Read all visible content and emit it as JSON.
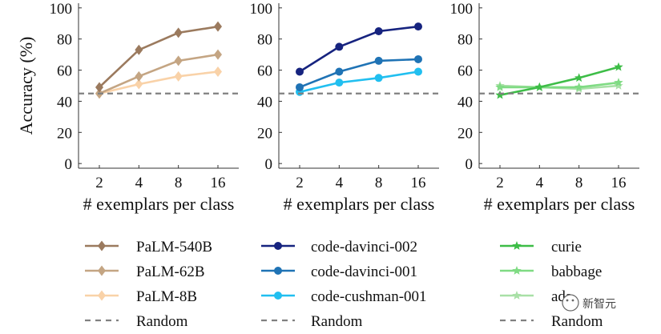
{
  "chart_data": [
    {
      "type": "line",
      "ylabel": "Accuracy (%)",
      "xlabel": "# exemplars per class",
      "x": [
        2,
        4,
        8,
        16
      ],
      "xticks": [
        "2",
        "4",
        "8",
        "16"
      ],
      "yticks": [
        "0",
        "20",
        "40",
        "60",
        "80",
        "100"
      ],
      "ylim": [
        -3,
        103
      ],
      "random_baseline": 45,
      "series": [
        {
          "name": "PaLM-540B",
          "values": [
            49,
            73,
            84,
            88
          ],
          "color": "#9b7a5e",
          "marker": "diamond"
        },
        {
          "name": "PaLM-62B",
          "values": [
            45,
            56,
            66,
            70
          ],
          "color": "#c4a583",
          "marker": "diamond"
        },
        {
          "name": "PaLM-8B",
          "values": [
            45,
            51,
            56,
            59
          ],
          "color": "#f9d2a8",
          "marker": "diamond"
        }
      ]
    },
    {
      "type": "line",
      "ylabel": "",
      "xlabel": "# exemplars per class",
      "x": [
        2,
        4,
        8,
        16
      ],
      "xticks": [
        "2",
        "4",
        "8",
        "16"
      ],
      "yticks": [
        "0",
        "20",
        "40",
        "60",
        "80",
        "100"
      ],
      "ylim": [
        -3,
        103
      ],
      "random_baseline": 45,
      "series": [
        {
          "name": "code-davinci-002",
          "values": [
            59,
            75,
            85,
            88
          ],
          "color": "#16237f",
          "marker": "circle"
        },
        {
          "name": "code-davinci-001",
          "values": [
            49,
            59,
            66,
            67
          ],
          "color": "#1f73b5",
          "marker": "circle"
        },
        {
          "name": "code-cushman-001",
          "values": [
            46,
            52,
            55,
            59
          ],
          "color": "#21bff0",
          "marker": "circle"
        }
      ]
    },
    {
      "type": "line",
      "ylabel": "",
      "xlabel": "# exemplars per class",
      "x": [
        2,
        4,
        8,
        16
      ],
      "xticks": [
        "2",
        "4",
        "8",
        "16"
      ],
      "yticks": [
        "0",
        "20",
        "40",
        "60",
        "80",
        "100"
      ],
      "ylim": [
        -3,
        103
      ],
      "random_baseline": 45,
      "series": [
        {
          "name": "curie",
          "values": [
            44,
            49,
            55,
            62
          ],
          "color": "#3dbd47",
          "marker": "star"
        },
        {
          "name": "babbage",
          "values": [
            49,
            49,
            49,
            52
          ],
          "color": "#7fdb83",
          "marker": "star"
        },
        {
          "name": "ada",
          "values": [
            50,
            49,
            48,
            50
          ],
          "color": "#a9e0a7",
          "marker": "star"
        }
      ]
    }
  ],
  "legend": {
    "random_label": "Random",
    "random_color": "#808080"
  },
  "watermark": "新智元"
}
